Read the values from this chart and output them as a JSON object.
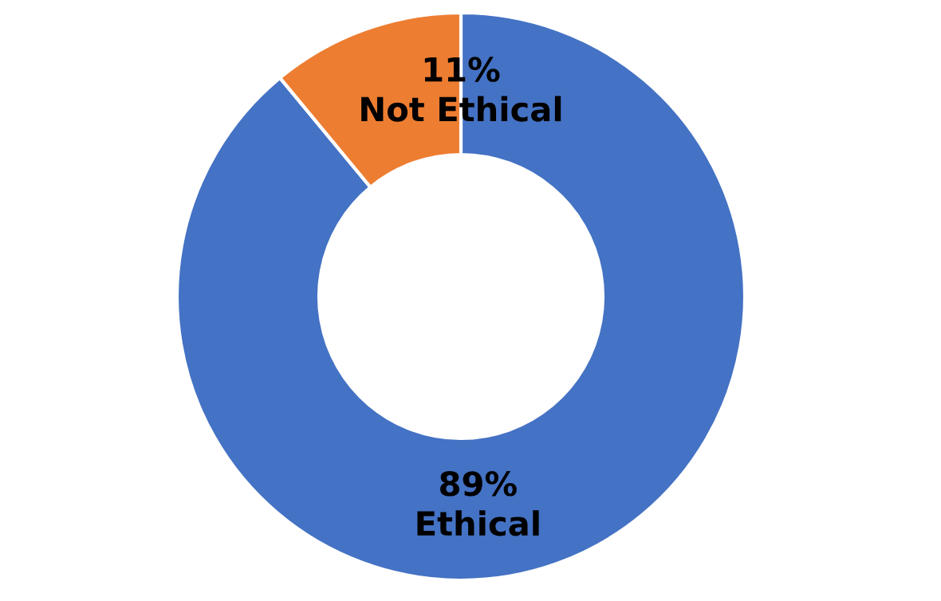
{
  "chart_data": {
    "type": "donut",
    "categories": [
      "Ethical",
      "Not Ethical"
    ],
    "values": [
      89,
      11
    ],
    "colors": [
      "#4472c4",
      "#ed7d31"
    ],
    "value_labels": [
      "89%",
      "11%"
    ],
    "legend": false
  }
}
